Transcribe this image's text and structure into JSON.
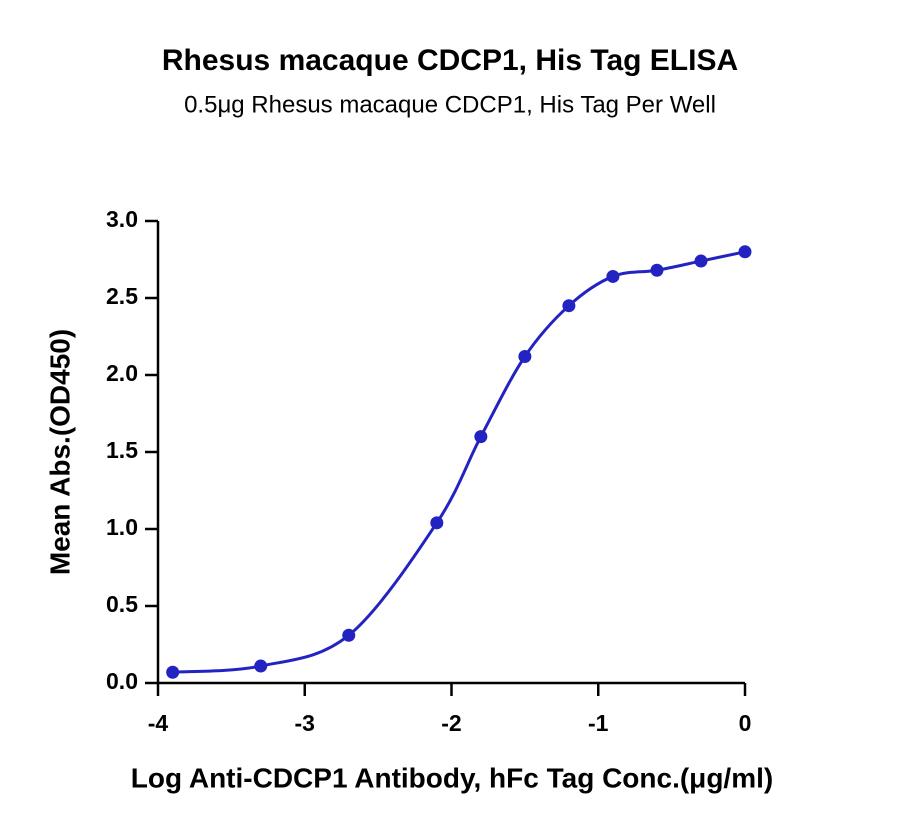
{
  "chart_data": {
    "type": "scatter",
    "title": "Rhesus macaque CDCP1, His Tag ELISA",
    "subtitle": "0.5μg Rhesus macaque CDCP1, His Tag Per Well",
    "x_label": "Log Anti-CDCP1 Antibody, hFc Tag Conc.(μg/ml)",
    "y_label": "Mean Abs.(OD450)",
    "series": [
      {
        "color": "#2323c2",
        "x": [
          -3.9,
          -3.3,
          -2.7,
          -2.1,
          -1.8,
          -1.5,
          -1.2,
          -0.9,
          -0.6,
          -0.3,
          0
        ],
        "values": [
          0.07,
          0.11,
          0.31,
          1.04,
          1.6,
          2.12,
          2.45,
          2.64,
          2.68,
          2.74,
          2.8
        ]
      }
    ],
    "xlim": [
      -4,
      0
    ],
    "xticks": [
      -4,
      -3,
      -2,
      -1,
      0
    ],
    "ylim": [
      0,
      3
    ],
    "yticks": [
      {
        "value": 0,
        "label": "0.0"
      },
      0.5,
      {
        "value": 1,
        "label": "1.0"
      },
      1.5,
      {
        "value": 2,
        "label": "2.0"
      },
      2.5,
      {
        "value": 3,
        "label": "3.0"
      }
    ],
    "grid": false
  }
}
